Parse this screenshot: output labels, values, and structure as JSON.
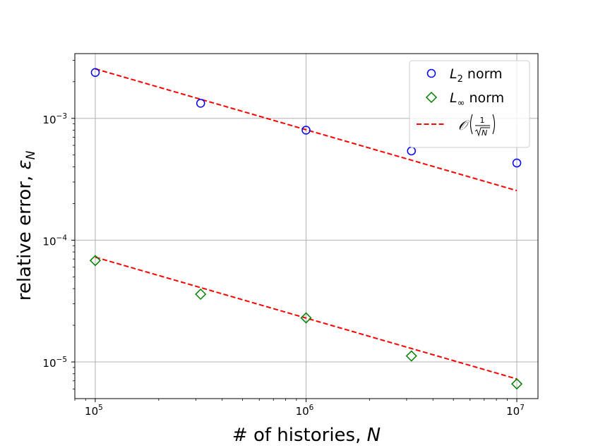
{
  "chart_data": {
    "type": "scatter",
    "x_scale": "log",
    "y_scale": "log",
    "xlim": [
      80000,
      12600000
    ],
    "ylim": [
      5e-06,
      0.0034
    ],
    "grid": true,
    "legend_position": "top-right",
    "xlabel": "# of histories, ",
    "xlabel_var": "N",
    "ylabel": "relative error, ",
    "ylabel_var": "ε",
    "ylabel_sub": "N",
    "x_ticks": [
      {
        "value": 100000,
        "base": "10",
        "exp": "5"
      },
      {
        "value": 1000000,
        "base": "10",
        "exp": "6"
      },
      {
        "value": 10000000,
        "base": "10",
        "exp": "7"
      }
    ],
    "y_ticks": [
      {
        "value": 1e-05,
        "base": "10",
        "exp": "−5"
      },
      {
        "value": 0.0001,
        "base": "10",
        "exp": "−4"
      },
      {
        "value": 0.001,
        "base": "10",
        "exp": "−3"
      }
    ],
    "series": [
      {
        "name": "L2 norm",
        "legend_main": "L",
        "legend_sub": "2",
        "legend_rest": " norm",
        "marker": "circle",
        "color": "#0000ff",
        "x": [
          100000,
          316228,
          1000000,
          3162278,
          10000000
        ],
        "y": [
          0.00238,
          0.00133,
          0.0008,
          0.00054,
          0.00043
        ]
      },
      {
        "name": "L∞ norm",
        "legend_main": "L",
        "legend_sub": "∞",
        "legend_rest": " norm",
        "marker": "diamond",
        "color": "#008000",
        "x": [
          100000,
          316228,
          1000000,
          3162278,
          10000000
        ],
        "y": [
          6.8e-05,
          3.6e-05,
          2.3e-05,
          1.12e-05,
          6.6e-06
        ]
      }
    ],
    "reference_lines": [
      {
        "x": [
          100000,
          10000000
        ],
        "y": [
          0.00255,
          0.000255
        ],
        "color": "#ff0000",
        "style": "dashed"
      },
      {
        "x": [
          100000,
          10000000
        ],
        "y": [
          7.25e-05,
          7.25e-06
        ],
        "color": "#ff0000",
        "style": "dashed"
      }
    ],
    "reference_legend": {
      "prefix": "𝒪",
      "numerator": "1",
      "radicand": "N"
    }
  }
}
